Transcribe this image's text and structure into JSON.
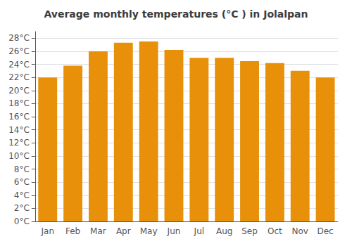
{
  "chart_data": {
    "type": "bar",
    "title": "Average monthly temperatures (°C ) in Jolalpan",
    "categories": [
      "Jan",
      "Feb",
      "Mar",
      "Apr",
      "May",
      "Jun",
      "Jul",
      "Aug",
      "Sep",
      "Oct",
      "Nov",
      "Dec"
    ],
    "values": [
      22.0,
      23.8,
      26.0,
      27.3,
      27.5,
      26.2,
      25.0,
      25.0,
      24.5,
      24.2,
      23.0,
      22.0
    ],
    "color": "#E8900A",
    "ylim": [
      0,
      29
    ],
    "yticks": [
      {
        "value": 0,
        "label": "0°C"
      },
      {
        "value": 2,
        "label": "2°C"
      },
      {
        "value": 4,
        "label": "4°C"
      },
      {
        "value": 6,
        "label": "6°C"
      },
      {
        "value": 8,
        "label": "8°C"
      },
      {
        "value": 10,
        "label": "10°C"
      },
      {
        "value": 12,
        "label": "12°C"
      },
      {
        "value": 14,
        "label": "14°C"
      },
      {
        "value": 16,
        "label": "16°C"
      },
      {
        "value": 18,
        "label": "18°C"
      },
      {
        "value": 20,
        "label": "20°C"
      },
      {
        "value": 22,
        "label": "22°C"
      },
      {
        "value": 24,
        "label": "24°C"
      },
      {
        "value": 26,
        "label": "26°C"
      },
      {
        "value": 28,
        "label": "28°C"
      }
    ],
    "grid": true
  }
}
